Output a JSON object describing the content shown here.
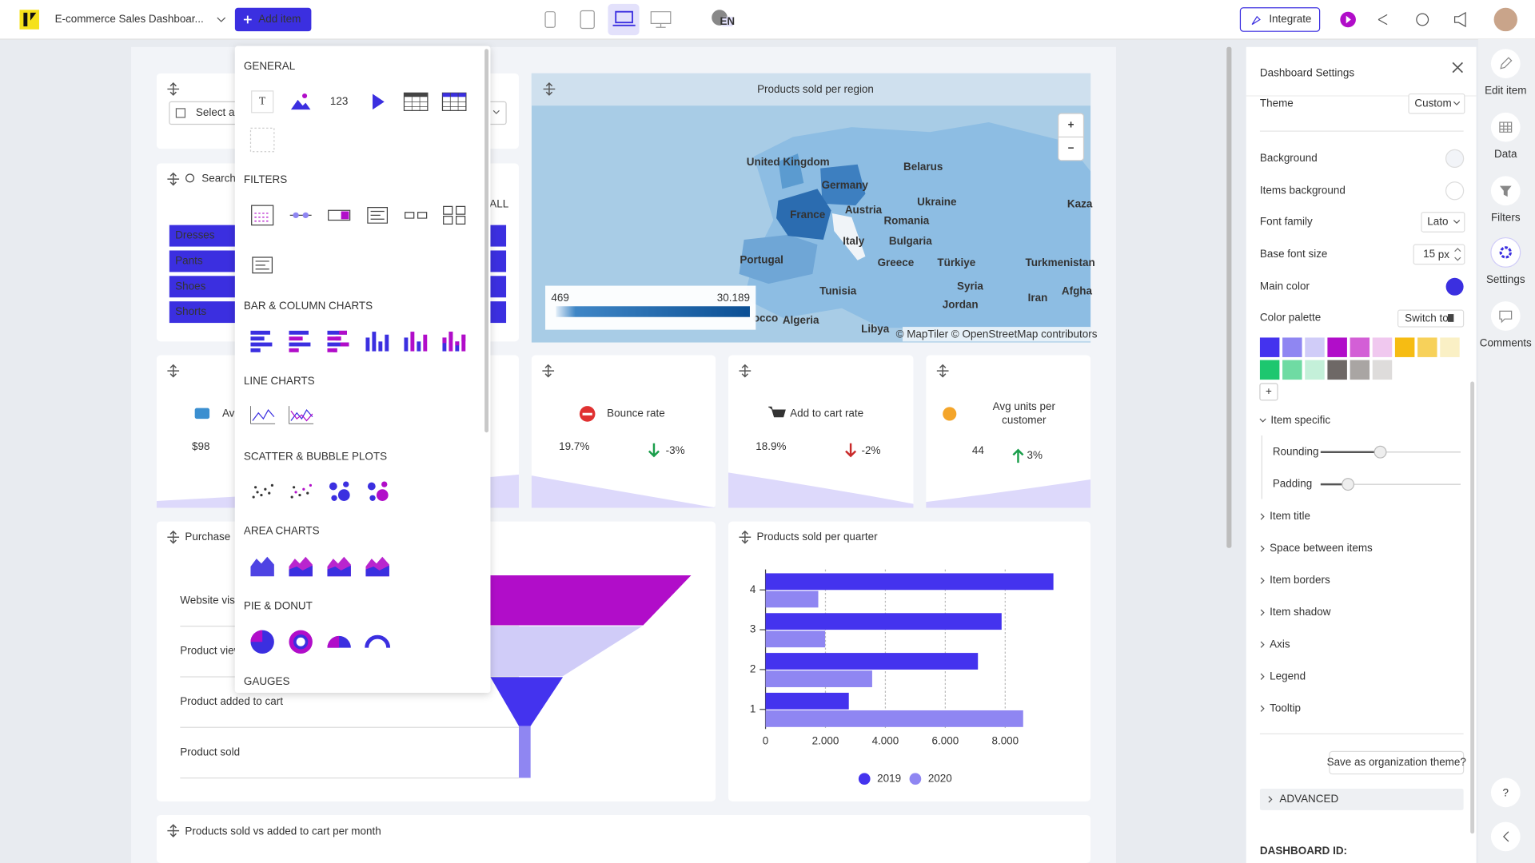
{
  "header": {
    "title": "E-commerce Sales Dashboar...",
    "add_item": "Add item",
    "language": "EN",
    "integrate": "Integrate"
  },
  "add_menu": {
    "sections": [
      "GENERAL",
      "FILTERS",
      "BAR & COLUMN CHARTS",
      "LINE CHARTS",
      "SCATTER & BUBBLE PLOTS",
      "AREA CHARTS",
      "PIE & DONUT",
      "GAUGES"
    ],
    "text_icon": "T",
    "number_icon": "123"
  },
  "filters": {
    "select_placeholder": "Select a",
    "search_placeholder": "Search",
    "select_all": "ALL",
    "options": [
      "Dresses",
      "Pants",
      "Shoes",
      "Shorts"
    ]
  },
  "map": {
    "title": "Products sold per region",
    "zoom_in": "+",
    "zoom_out": "−",
    "legend_min": "469",
    "legend_max": "30.189",
    "attribution": "© MapTiler © OpenStreetMap contributors",
    "labels": [
      "United Kingdom",
      "Germany",
      "Belarus",
      "France",
      "Austria",
      "Ukraine",
      "Kaza",
      "Romania",
      "Italy",
      "Bulgaria",
      "Portugal",
      "Greece",
      "Türkiye",
      "Turkmenistan",
      "Syria",
      "Afgha",
      "Tunisia",
      "Iran",
      "Jordan",
      "occo",
      "Algeria",
      "Libya"
    ]
  },
  "kpis": [
    {
      "title": "Av",
      "value": "$98"
    },
    {
      "title": "Bounce rate",
      "value": "19.7%",
      "change": "-3%"
    },
    {
      "title": "Add to cart rate",
      "value": "18.9%",
      "change": "-2%"
    },
    {
      "title_lines": [
        "Avg units per",
        "customer"
      ],
      "value": "44",
      "change": "3%"
    }
  ],
  "funnel": {
    "title": "Purchase",
    "stages": [
      "Website visi",
      "Product view",
      "Product added to cart",
      "Product sold"
    ]
  },
  "chart_data": {
    "type": "bar",
    "orientation": "horizontal",
    "title": "Products sold per quarter",
    "categories": [
      "1",
      "2",
      "3",
      "4"
    ],
    "series": [
      {
        "name": "2019",
        "color": "#4433ee",
        "values": [
          2780,
          7090,
          7880,
          9610
        ]
      },
      {
        "name": "2020",
        "color": "#8f86f2",
        "values": [
          8600,
          3560,
          1990,
          1760
        ]
      }
    ],
    "xlim": [
      0,
      10000
    ],
    "xticks": [
      0,
      {
        "value": 2000,
        "label": "2.000"
      },
      {
        "value": 4000,
        "label": "4.000"
      },
      {
        "value": 6000,
        "label": "6.000"
      },
      {
        "value": 8000,
        "label": "8.000"
      }
    ],
    "grid": true,
    "legend": "bottom"
  },
  "bottom_item": {
    "title": "Products sold vs added to cart per month"
  },
  "settings": {
    "title": "Dashboard Settings",
    "theme_label": "Theme",
    "theme_value": "Custom",
    "background": "Background",
    "items_background": "Items background",
    "font_family_label": "Font family",
    "font_family_value": "Lato",
    "base_font_size_label": "Base font size",
    "base_font_size_value": "15",
    "base_font_size_unit": "px",
    "main_color": "Main color",
    "main_color_value": "#3b2fe0",
    "color_palette": "Color palette",
    "switch_to": "Switch to",
    "palette": [
      "#4433ee",
      "#8f86f2",
      "#d0ccf8",
      "#b10dc9",
      "#d35fd6",
      "#f0c8ef",
      "#f6bc13",
      "#f7d15a",
      "#faf0c5",
      "#1dc76f",
      "#6fdba3",
      "#c4f0d9",
      "#6e6866",
      "#a9a5a3",
      "#dedcdb"
    ],
    "add_color": "+",
    "item_specific": "Item specific",
    "rounding": "Rounding",
    "padding": "Padding",
    "sections": [
      "Item title",
      "Space between items",
      "Item borders",
      "Item shadow",
      "Axis",
      "Legend",
      "Tooltip"
    ],
    "save_theme": "Save as organization theme?",
    "advanced": "ADVANCED",
    "dashboard_id": "DASHBOARD ID:"
  },
  "sidebar": {
    "items": [
      "Edit item",
      "Data",
      "Filters",
      "Settings",
      "Comments"
    ],
    "help": "?"
  }
}
